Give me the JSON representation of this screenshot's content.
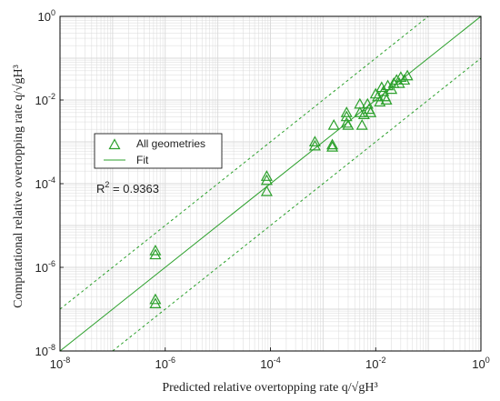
{
  "chart_data": {
    "type": "scatter",
    "x_scale": "log",
    "y_scale": "log",
    "xlim": [
      1e-08,
      1
    ],
    "ylim": [
      1e-08,
      1
    ],
    "grid": true,
    "xlabel": "Predicted relative overtopping rate q/√gH³",
    "ylabel": "Computational relative overtopping rate q/√gH³",
    "x_ticks": [
      {
        "value": 1e-08,
        "base": "10",
        "exp": "-8"
      },
      {
        "value": 1e-06,
        "base": "10",
        "exp": "-6"
      },
      {
        "value": 0.0001,
        "base": "10",
        "exp": "-4"
      },
      {
        "value": 0.01,
        "base": "10",
        "exp": "-2"
      },
      {
        "value": 1,
        "base": "10",
        "exp": "0"
      }
    ],
    "y_ticks": [
      {
        "value": 1e-08,
        "base": "10",
        "exp": "-8"
      },
      {
        "value": 1e-06,
        "base": "10",
        "exp": "-6"
      },
      {
        "value": 0.0001,
        "base": "10",
        "exp": "-4"
      },
      {
        "value": 0.01,
        "base": "10",
        "exp": "-2"
      },
      {
        "value": 1,
        "base": "10",
        "exp": "0"
      }
    ],
    "legend": {
      "placement": "middle-left",
      "entries": [
        {
          "label": "All geometries",
          "marker": "triangle"
        },
        {
          "label": "Fit",
          "marker": "line"
        }
      ]
    },
    "annotation": {
      "text": "R",
      "sup": "2",
      "rest": " = 0.9363"
    },
    "colors": {
      "series": "#2ca02c",
      "grid": "#d9d9d9",
      "axis": "#000000"
    },
    "series": [
      {
        "name": "All geometries",
        "marker": "triangle",
        "points": [
          [
            6.5e-07,
            2.5e-06
          ],
          [
            6.5e-07,
            2e-06
          ],
          [
            6.5e-07,
            1.7e-07
          ],
          [
            6.5e-07,
            1.35e-07
          ],
          [
            8.5e-05,
            0.00015
          ],
          [
            8.5e-05,
            0.00012
          ],
          [
            8.5e-05,
            6.5e-05
          ],
          [
            0.0007,
            0.001
          ],
          [
            0.0007,
            0.0008
          ],
          [
            0.0015,
            0.00085
          ],
          [
            0.0015,
            0.00075
          ],
          [
            0.0016,
            0.0025
          ],
          [
            0.0028,
            0.005
          ],
          [
            0.0028,
            0.004
          ],
          [
            0.0028,
            0.0028
          ],
          [
            0.003,
            0.0025
          ],
          [
            0.005,
            0.008
          ],
          [
            0.005,
            0.005
          ],
          [
            0.0055,
            0.0025
          ],
          [
            0.006,
            0.0045
          ],
          [
            0.007,
            0.008
          ],
          [
            0.0075,
            0.006
          ],
          [
            0.008,
            0.005
          ],
          [
            0.01,
            0.014
          ],
          [
            0.011,
            0.012
          ],
          [
            0.012,
            0.009
          ],
          [
            0.013,
            0.02
          ],
          [
            0.014,
            0.016
          ],
          [
            0.015,
            0.012
          ],
          [
            0.016,
            0.01
          ],
          [
            0.017,
            0.022
          ],
          [
            0.02,
            0.018
          ],
          [
            0.022,
            0.025
          ],
          [
            0.025,
            0.03
          ],
          [
            0.028,
            0.025
          ],
          [
            0.03,
            0.035
          ],
          [
            0.035,
            0.03
          ],
          [
            0.04,
            0.038
          ]
        ]
      },
      {
        "name": "Fit",
        "line": "solid",
        "points": [
          [
            1e-08,
            1e-08
          ],
          [
            1,
            1
          ]
        ]
      },
      {
        "name": "",
        "line": "dashed",
        "points": [
          [
            1e-08,
            1e-07
          ],
          [
            0.1,
            1
          ]
        ]
      },
      {
        "name": "",
        "line": "dashed",
        "points": [
          [
            1e-07,
            1e-08
          ],
          [
            1,
            0.1
          ]
        ]
      }
    ]
  }
}
